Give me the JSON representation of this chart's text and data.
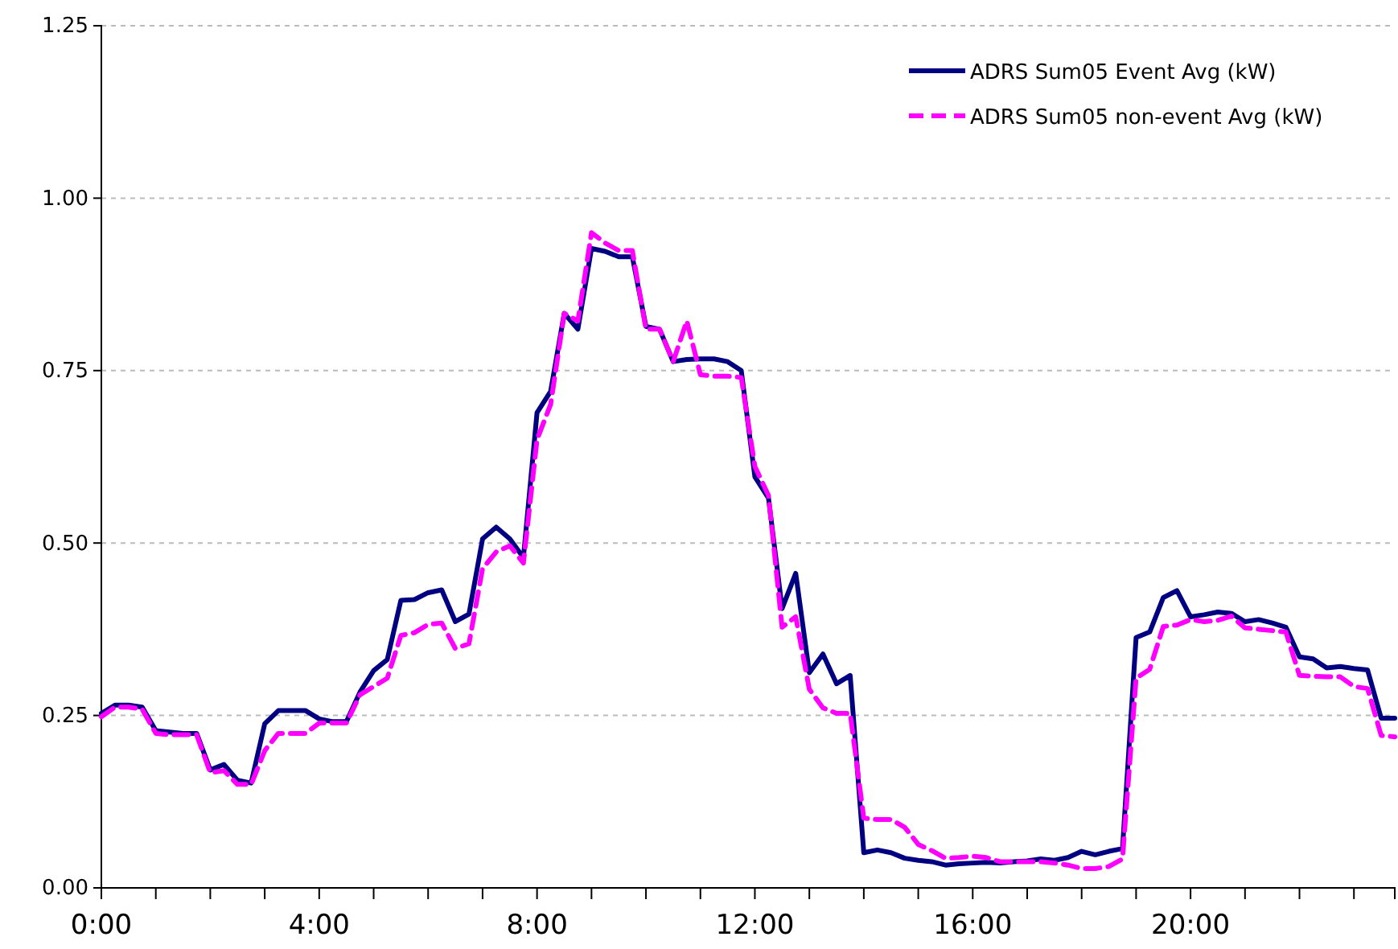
{
  "chart_data": {
    "type": "line",
    "x": [
      0,
      0.25,
      0.5,
      0.75,
      1,
      1.25,
      1.5,
      1.75,
      2,
      2.25,
      2.5,
      2.75,
      3,
      3.25,
      3.5,
      3.75,
      4,
      4.25,
      4.5,
      4.75,
      5,
      5.25,
      5.5,
      5.75,
      6,
      6.25,
      6.5,
      6.75,
      7,
      7.25,
      7.5,
      7.75,
      8,
      8.25,
      8.5,
      8.75,
      9,
      9.25,
      9.5,
      9.75,
      10,
      10.25,
      10.5,
      10.75,
      11,
      11.25,
      11.5,
      11.75,
      12,
      12.25,
      12.5,
      12.75,
      13,
      13.25,
      13.5,
      13.75,
      14,
      14.25,
      14.5,
      14.75,
      15,
      15.25,
      15.5,
      15.75,
      16,
      16.25,
      16.5,
      16.75,
      17,
      17.25,
      17.5,
      17.75,
      18,
      18.25,
      18.5,
      18.75,
      19,
      19.25,
      19.5,
      19.75,
      20,
      20.25,
      20.5,
      20.75,
      21,
      21.25,
      21.5,
      21.75,
      22,
      22.25,
      22.5,
      22.75,
      23,
      23.25,
      23.5,
      23.75
    ],
    "series": [
      {
        "name": "ADRS Sum05 Event Avg (kW)",
        "color": "#000080",
        "line_style": "solid",
        "values": [
          0.253,
          0.265,
          0.265,
          0.262,
          0.228,
          0.226,
          0.224,
          0.224,
          0.171,
          0.179,
          0.156,
          0.152,
          0.238,
          0.257,
          0.257,
          0.257,
          0.245,
          0.241,
          0.241,
          0.284,
          0.315,
          0.331,
          0.417,
          0.418,
          0.428,
          0.432,
          0.386,
          0.397,
          0.506,
          0.523,
          0.506,
          0.479,
          0.689,
          0.72,
          0.833,
          0.81,
          0.927,
          0.923,
          0.915,
          0.915,
          0.814,
          0.81,
          0.763,
          0.766,
          0.767,
          0.767,
          0.763,
          0.75,
          0.596,
          0.565,
          0.405,
          0.456,
          0.312,
          0.339,
          0.296,
          0.308,
          0.051,
          0.055,
          0.051,
          0.043,
          0.04,
          0.038,
          0.033,
          0.035,
          0.036,
          0.037,
          0.036,
          0.038,
          0.039,
          0.042,
          0.04,
          0.044,
          0.053,
          0.048,
          0.053,
          0.057,
          0.363,
          0.371,
          0.421,
          0.431,
          0.393,
          0.396,
          0.4,
          0.398,
          0.386,
          0.389,
          0.384,
          0.378,
          0.335,
          0.332,
          0.319,
          0.321,
          0.318,
          0.316,
          0.246,
          0.246
        ]
      },
      {
        "name": "ADRS Sum05 non-event Avg (kW)",
        "color": "#ff00ff",
        "line_style": "dashed",
        "values": [
          0.248,
          0.262,
          0.262,
          0.259,
          0.224,
          0.222,
          0.222,
          0.222,
          0.167,
          0.17,
          0.15,
          0.15,
          0.199,
          0.224,
          0.224,
          0.224,
          0.239,
          0.239,
          0.239,
          0.28,
          0.292,
          0.304,
          0.366,
          0.37,
          0.382,
          0.384,
          0.347,
          0.354,
          0.463,
          0.487,
          0.496,
          0.471,
          0.65,
          0.701,
          0.833,
          0.822,
          0.95,
          0.935,
          0.924,
          0.924,
          0.81,
          0.81,
          0.763,
          0.822,
          0.744,
          0.742,
          0.742,
          0.74,
          0.611,
          0.569,
          0.378,
          0.393,
          0.288,
          0.261,
          0.253,
          0.253,
          0.101,
          0.099,
          0.099,
          0.088,
          0.063,
          0.054,
          0.043,
          0.044,
          0.046,
          0.044,
          0.038,
          0.038,
          0.038,
          0.038,
          0.036,
          0.033,
          0.028,
          0.028,
          0.031,
          0.042,
          0.304,
          0.317,
          0.379,
          0.381,
          0.389,
          0.386,
          0.388,
          0.394,
          0.377,
          0.375,
          0.373,
          0.371,
          0.308,
          0.307,
          0.306,
          0.306,
          0.292,
          0.289,
          0.221,
          0.219
        ]
      }
    ],
    "xlim": [
      0,
      23.75
    ],
    "xticks": [
      {
        "value": 0,
        "label": "0:00"
      },
      {
        "value": 1,
        "label": null
      },
      {
        "value": 2,
        "label": null
      },
      {
        "value": 3,
        "label": null
      },
      {
        "value": 4,
        "label": "4:00"
      },
      {
        "value": 5,
        "label": null
      },
      {
        "value": 6,
        "label": null
      },
      {
        "value": 7,
        "label": null
      },
      {
        "value": 8,
        "label": "8:00"
      },
      {
        "value": 9,
        "label": null
      },
      {
        "value": 10,
        "label": null
      },
      {
        "value": 11,
        "label": null
      },
      {
        "value": 12,
        "label": "12:00"
      },
      {
        "value": 13,
        "label": null
      },
      {
        "value": 14,
        "label": null
      },
      {
        "value": 15,
        "label": null
      },
      {
        "value": 16,
        "label": "16:00"
      },
      {
        "value": 17,
        "label": null
      },
      {
        "value": 18,
        "label": null
      },
      {
        "value": 19,
        "label": null
      },
      {
        "value": 20,
        "label": "20:00"
      },
      {
        "value": 21,
        "label": null
      },
      {
        "value": 22,
        "label": null
      },
      {
        "value": 23,
        "label": null
      }
    ],
    "ylim": [
      0,
      1.25
    ],
    "yticks": [
      {
        "value": 0,
        "label": "0.00"
      },
      {
        "value": 0.25,
        "label": "0.25"
      },
      {
        "value": 0.5,
        "label": "0.50"
      },
      {
        "value": 0.75,
        "label": "0.75"
      },
      {
        "value": 1,
        "label": "1.00"
      },
      {
        "value": 1.25,
        "label": "1.25"
      }
    ],
    "grid": "y",
    "legend": "top right",
    "marker": "none"
  }
}
